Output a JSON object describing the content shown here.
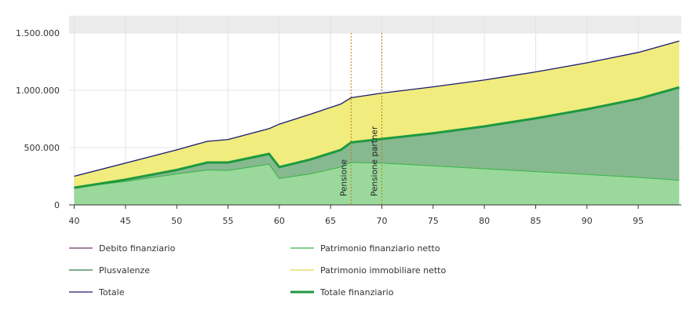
{
  "chart_data": {
    "type": "area",
    "x_ticks": [
      40,
      45,
      50,
      55,
      60,
      65,
      70,
      75,
      80,
      85,
      90,
      95
    ],
    "y_ticks": [
      0,
      500000,
      1000000,
      1500000
    ],
    "y_tick_labels": [
      "0",
      "500.000",
      "1.000.000",
      "1.500.000"
    ],
    "xlim": [
      39.5,
      99.2
    ],
    "ylim": [
      0,
      1500000
    ],
    "grid": true,
    "legend_position": "bottom",
    "vertical_markers": [
      {
        "x": 67,
        "label": "Pensione",
        "color": "#b8860b"
      },
      {
        "x": 70,
        "label": "Pensione partner",
        "color": "#b8860b"
      }
    ],
    "series": [
      {
        "name": "Totale",
        "color": "#1a1a6e",
        "points": [
          [
            40,
            250000
          ],
          [
            45,
            365000
          ],
          [
            50,
            480000
          ],
          [
            53,
            555000
          ],
          [
            55,
            570000
          ],
          [
            59,
            665000
          ],
          [
            60,
            705000
          ],
          [
            63,
            790000
          ],
          [
            66,
            880000
          ],
          [
            67,
            935000
          ],
          [
            70,
            975000
          ],
          [
            75,
            1030000
          ],
          [
            80,
            1090000
          ],
          [
            85,
            1160000
          ],
          [
            90,
            1240000
          ],
          [
            95,
            1330000
          ],
          [
            99,
            1430000
          ]
        ]
      },
      {
        "name": "Totale finanziario",
        "color": "#1e9940",
        "points": [
          [
            40,
            150000
          ],
          [
            45,
            220000
          ],
          [
            50,
            305000
          ],
          [
            53,
            370000
          ],
          [
            55,
            370000
          ],
          [
            59,
            445000
          ],
          [
            60,
            330000
          ],
          [
            63,
            395000
          ],
          [
            66,
            480000
          ],
          [
            67,
            545000
          ],
          [
            70,
            575000
          ],
          [
            75,
            625000
          ],
          [
            80,
            685000
          ],
          [
            85,
            755000
          ],
          [
            90,
            835000
          ],
          [
            95,
            925000
          ],
          [
            99,
            1025000
          ]
        ]
      },
      {
        "name": "Patrimonio finanziario netto",
        "color": "#3cb34a",
        "points": [
          [
            40,
            150000
          ],
          [
            45,
            205000
          ],
          [
            50,
            270000
          ],
          [
            53,
            305000
          ],
          [
            55,
            300000
          ],
          [
            59,
            355000
          ],
          [
            60,
            230000
          ],
          [
            63,
            270000
          ],
          [
            66,
            330000
          ],
          [
            67,
            370000
          ],
          [
            70,
            365000
          ],
          [
            75,
            340000
          ],
          [
            80,
            315000
          ],
          [
            85,
            290000
          ],
          [
            90,
            265000
          ],
          [
            95,
            240000
          ],
          [
            99,
            215000
          ]
        ]
      },
      {
        "name": "Debito finanziario",
        "color": "#6b3e6b",
        "points": []
      },
      {
        "name": "Plusvalenze",
        "color": "#2e7d4a",
        "points": []
      },
      {
        "name": "Patrimonio immobiliare netto",
        "color": "#e8d44d",
        "points": []
      }
    ],
    "legend": [
      {
        "label": "Debito finanziario",
        "color": "#6b3e6b",
        "weight": "thin"
      },
      {
        "label": "Patrimonio finanziario netto",
        "color": "#3cb34a",
        "weight": "thin"
      },
      {
        "label": "Plusvalenze",
        "color": "#2e7d4a",
        "weight": "thin"
      },
      {
        "label": "Patrimonio immobiliare netto",
        "color": "#e8d44d",
        "weight": "thin"
      },
      {
        "label": "Totale",
        "color": "#1a1a6e",
        "weight": "thin"
      },
      {
        "label": "Totale finanziario",
        "color": "#1e9940",
        "weight": "thick"
      }
    ],
    "fills": {
      "real_estate": "#f0ec7e",
      "capital_gains": "#86b98f",
      "financial": "#9ad99b",
      "top_band": "#ececec"
    }
  }
}
